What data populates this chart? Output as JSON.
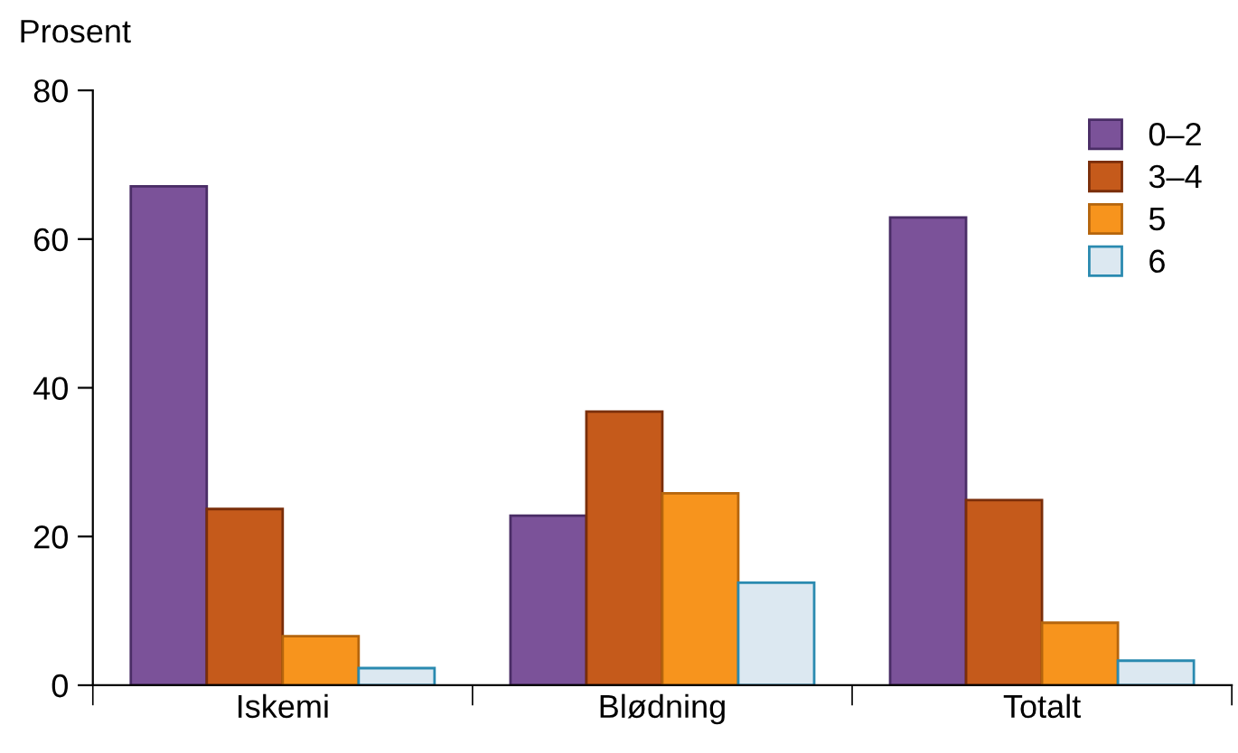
{
  "chart_data": {
    "type": "bar",
    "ylabel": "Prosent",
    "categories": [
      "Iskemi",
      "Blødning",
      "Totalt"
    ],
    "series": [
      {
        "name": "0–2",
        "color": "#7b5299",
        "values": [
          67.1,
          22.8,
          62.9
        ]
      },
      {
        "name": "3–4",
        "color": "#c55a1b",
        "values": [
          23.7,
          36.8,
          24.9
        ]
      },
      {
        "name": "5",
        "color": "#f7941d",
        "values": [
          6.6,
          25.8,
          8.4
        ]
      },
      {
        "name": "6",
        "color": "#dce8f1",
        "values": [
          2.3,
          13.8,
          3.3
        ]
      }
    ],
    "ylim": [
      0,
      80
    ],
    "yticks": [
      0,
      20,
      40,
      60,
      80
    ],
    "grid": false,
    "legend": "top right"
  }
}
